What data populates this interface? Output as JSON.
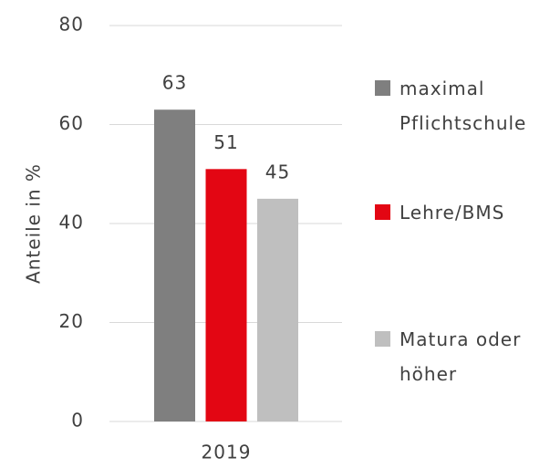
{
  "chart_data": {
    "type": "bar",
    "categories": [
      "2019"
    ],
    "series": [
      {
        "name": "maximal Pflichtschule",
        "color": "#7f7f7f",
        "values": [
          63
        ]
      },
      {
        "name": "Lehre/BMS",
        "color": "#e30613",
        "values": [
          51
        ]
      },
      {
        "name": "Matura oder höher",
        "color": "#bfbfbf",
        "values": [
          45
        ]
      }
    ],
    "ylabel": "Anteile in %",
    "ylim": [
      0,
      80
    ],
    "yticks": [
      0,
      20,
      40,
      60,
      80
    ],
    "grid": true,
    "legend": "right"
  }
}
